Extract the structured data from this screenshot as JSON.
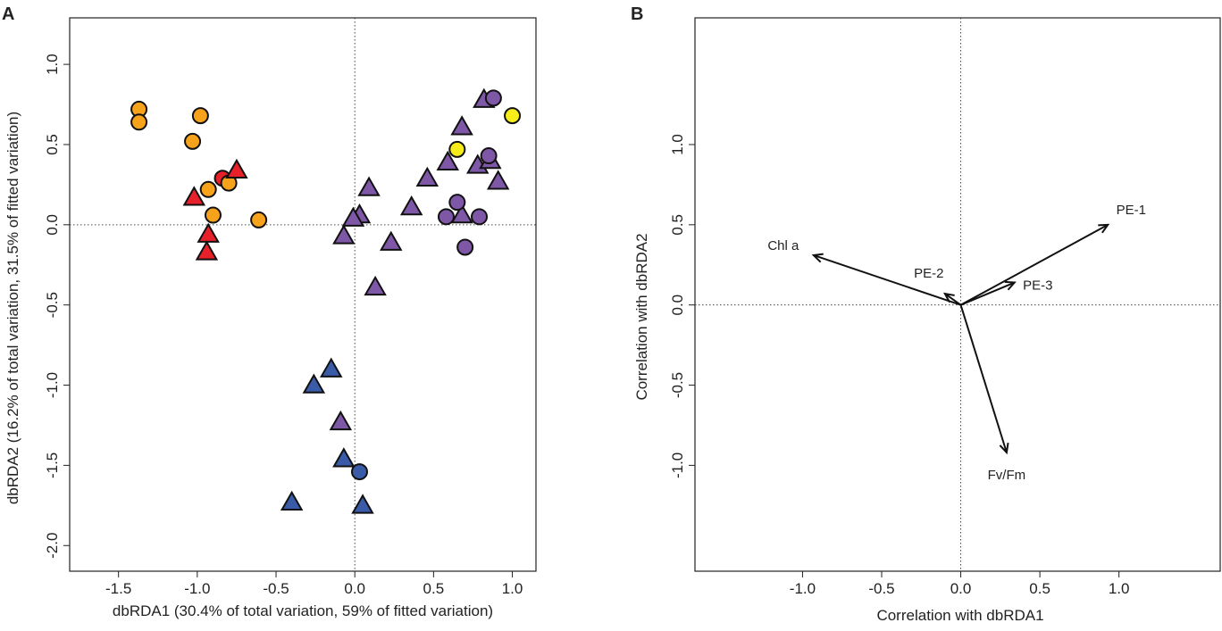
{
  "chart_data": [
    {
      "type": "scatter",
      "panel_label": "A",
      "xlabel": "dbRDA1 (30.4% of total variation, 59% of fitted variation)",
      "ylabel": "dbRDA2 (16.2% of total variation, 31.5% of fitted variation)",
      "xlim": [
        -1.81,
        1.15
      ],
      "ylim": [
        -2.16,
        1.29
      ],
      "xticks": [
        -1.5,
        -1.0,
        -0.5,
        0.0,
        0.5,
        1.0
      ],
      "xtick_labels": [
        "-1.5",
        "-1.0",
        "-0.5",
        "0.0",
        "0.5",
        "1.0"
      ],
      "yticks": [
        -2.0,
        -1.5,
        -1.0,
        -0.5,
        0.0,
        0.5,
        1.0
      ],
      "ytick_labels": [
        "-2.0",
        "-1.5",
        "-1.0",
        "-0.5",
        "0.0",
        "0.5",
        "1.0"
      ],
      "reference_lines": {
        "x": 0,
        "y": 0,
        "style": "dotted"
      },
      "colors": {
        "orange": "#F7A21B",
        "red": "#E8202A",
        "purple": "#7E57A6",
        "yellow": "#F5EC1A",
        "blue": "#3A5BA8"
      },
      "points": [
        {
          "x": -1.37,
          "y": 0.72,
          "color": "orange",
          "shape": "circle"
        },
        {
          "x": -1.37,
          "y": 0.64,
          "color": "orange",
          "shape": "circle"
        },
        {
          "x": -0.98,
          "y": 0.68,
          "color": "orange",
          "shape": "circle"
        },
        {
          "x": -1.03,
          "y": 0.52,
          "color": "orange",
          "shape": "circle"
        },
        {
          "x": -0.93,
          "y": 0.22,
          "color": "orange",
          "shape": "circle"
        },
        {
          "x": -0.9,
          "y": 0.06,
          "color": "orange",
          "shape": "circle"
        },
        {
          "x": -0.61,
          "y": 0.03,
          "color": "orange",
          "shape": "circle"
        },
        {
          "x": -0.84,
          "y": 0.29,
          "color": "red",
          "shape": "circle"
        },
        {
          "x": -0.8,
          "y": 0.26,
          "color": "orange",
          "shape": "circle"
        },
        {
          "x": -0.75,
          "y": 0.34,
          "color": "red",
          "shape": "triangle"
        },
        {
          "x": -1.02,
          "y": 0.17,
          "color": "red",
          "shape": "triangle"
        },
        {
          "x": -0.93,
          "y": -0.06,
          "color": "red",
          "shape": "triangle"
        },
        {
          "x": -0.94,
          "y": -0.17,
          "color": "red",
          "shape": "triangle"
        },
        {
          "x": 0.82,
          "y": 0.78,
          "color": "purple",
          "shape": "triangle"
        },
        {
          "x": 0.68,
          "y": 0.61,
          "color": "purple",
          "shape": "triangle"
        },
        {
          "x": 0.59,
          "y": 0.39,
          "color": "purple",
          "shape": "triangle"
        },
        {
          "x": 0.78,
          "y": 0.37,
          "color": "purple",
          "shape": "triangle"
        },
        {
          "x": 0.86,
          "y": 0.4,
          "color": "purple",
          "shape": "triangle"
        },
        {
          "x": 0.91,
          "y": 0.27,
          "color": "purple",
          "shape": "triangle"
        },
        {
          "x": 0.46,
          "y": 0.29,
          "color": "purple",
          "shape": "triangle"
        },
        {
          "x": 0.09,
          "y": 0.23,
          "color": "purple",
          "shape": "triangle"
        },
        {
          "x": 0.36,
          "y": 0.11,
          "color": "purple",
          "shape": "triangle"
        },
        {
          "x": 0.68,
          "y": 0.06,
          "color": "purple",
          "shape": "triangle"
        },
        {
          "x": 0.03,
          "y": 0.06,
          "color": "purple",
          "shape": "triangle"
        },
        {
          "x": -0.01,
          "y": 0.04,
          "color": "purple",
          "shape": "triangle"
        },
        {
          "x": -0.07,
          "y": -0.07,
          "color": "purple",
          "shape": "triangle"
        },
        {
          "x": 0.23,
          "y": -0.11,
          "color": "purple",
          "shape": "triangle"
        },
        {
          "x": 0.13,
          "y": -0.39,
          "color": "purple",
          "shape": "triangle"
        },
        {
          "x": 0.88,
          "y": 0.79,
          "color": "purple",
          "shape": "circle"
        },
        {
          "x": 0.85,
          "y": 0.43,
          "color": "purple",
          "shape": "circle"
        },
        {
          "x": 0.65,
          "y": 0.14,
          "color": "purple",
          "shape": "circle"
        },
        {
          "x": 0.58,
          "y": 0.05,
          "color": "purple",
          "shape": "circle"
        },
        {
          "x": 0.79,
          "y": 0.05,
          "color": "purple",
          "shape": "circle"
        },
        {
          "x": 0.7,
          "y": -0.14,
          "color": "purple",
          "shape": "circle"
        },
        {
          "x": 1.0,
          "y": 0.68,
          "color": "yellow",
          "shape": "circle"
        },
        {
          "x": 0.65,
          "y": 0.47,
          "color": "yellow",
          "shape": "circle"
        },
        {
          "x": -0.15,
          "y": -0.9,
          "color": "blue",
          "shape": "triangle"
        },
        {
          "x": -0.26,
          "y": -1.0,
          "color": "blue",
          "shape": "triangle"
        },
        {
          "x": -0.09,
          "y": -1.23,
          "color": "purple",
          "shape": "triangle"
        },
        {
          "x": -0.07,
          "y": -1.46,
          "color": "blue",
          "shape": "triangle"
        },
        {
          "x": -0.4,
          "y": -1.73,
          "color": "blue",
          "shape": "triangle"
        },
        {
          "x": 0.05,
          "y": -1.75,
          "color": "blue",
          "shape": "triangle"
        },
        {
          "x": 0.03,
          "y": -1.54,
          "color": "blue",
          "shape": "circle"
        }
      ]
    },
    {
      "type": "biplot-vectors",
      "panel_label": "B",
      "xlabel": "Correlation with dbRDA1",
      "ylabel": "Correlation with dbRDA2",
      "xlim": [
        -1.68,
        1.64
      ],
      "ylim": [
        -1.66,
        1.79
      ],
      "xticks": [
        -1.0,
        -0.5,
        0.0,
        0.5,
        1.0
      ],
      "xtick_labels": [
        "-1.0",
        "-0.5",
        "0.0",
        "0.5",
        "1.0"
      ],
      "yticks": [
        -1.0,
        -0.5,
        0.0,
        0.5,
        1.0
      ],
      "ytick_labels": [
        "-1.0",
        "-0.5",
        "0.0",
        "0.5",
        "1.0"
      ],
      "reference_lines": {
        "x": 0,
        "y": 0,
        "style": "dotted"
      },
      "vectors": [
        {
          "name": "Chl a",
          "x": -0.93,
          "y": 0.31
        },
        {
          "name": "PE-2",
          "x": -0.1,
          "y": 0.07
        },
        {
          "name": "PE-3",
          "x": 0.34,
          "y": 0.14
        },
        {
          "name": "PE-1",
          "x": 0.93,
          "y": 0.5
        },
        {
          "name": "Fv/Fm",
          "x": 0.29,
          "y": -0.92
        }
      ]
    }
  ]
}
